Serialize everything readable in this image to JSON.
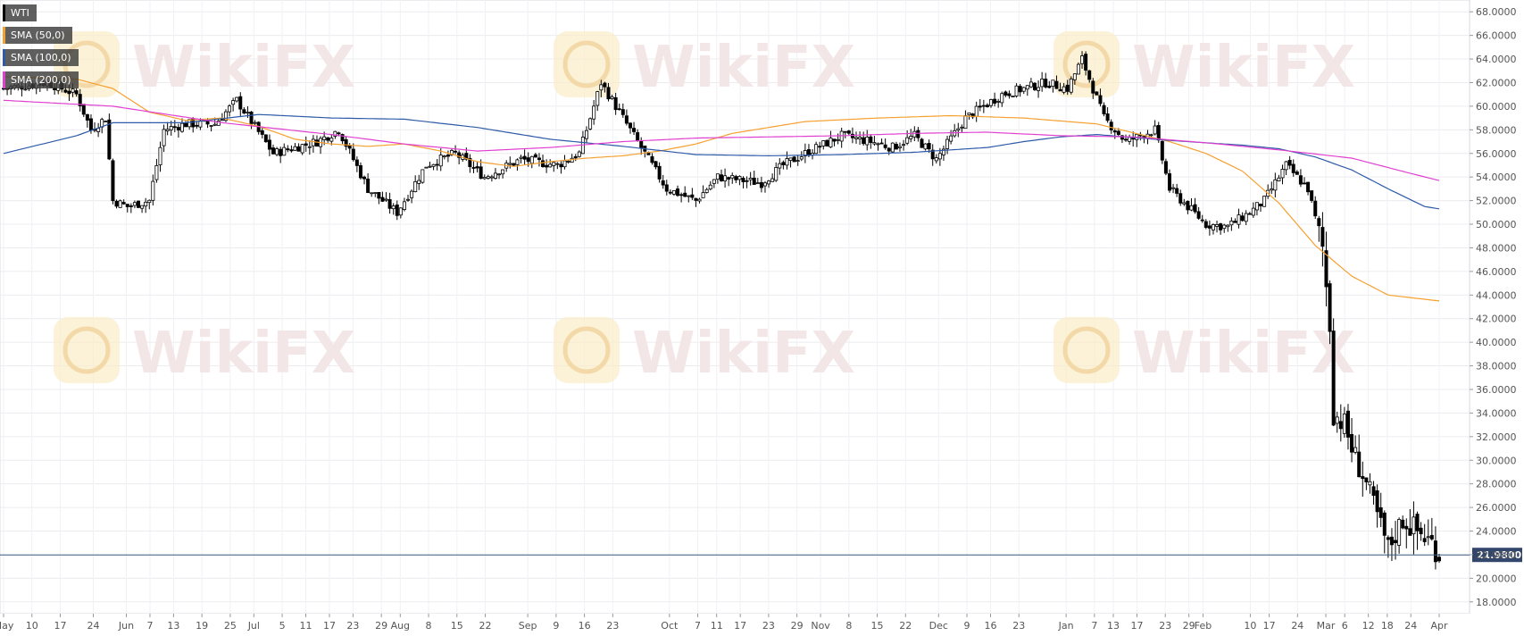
{
  "legend": [
    {
      "label": "WTI",
      "color": "#000000"
    },
    {
      "label": "SMA (50,0)",
      "color": "#f5a030"
    },
    {
      "label": "SMA (100,0)",
      "color": "#2e5aa8"
    },
    {
      "label": "SMA (200,0)",
      "color": "#e040d0"
    }
  ],
  "watermark": "WikiFX",
  "chart_data": {
    "type": "candlestick",
    "ylim": [
      17,
      69
    ],
    "y_ticks": [
      18,
      20,
      22,
      24,
      26,
      28,
      30,
      32,
      34,
      36,
      38,
      40,
      42,
      44,
      46,
      48,
      50,
      52,
      54,
      56,
      58,
      60,
      62,
      64,
      66,
      68
    ],
    "x_tick_labels": [
      "May",
      "10",
      "17",
      "24",
      "Jun",
      "7",
      "13",
      "19",
      "25",
      "Jul",
      "5",
      "11",
      "17",
      "23",
      "29",
      "Aug",
      "8",
      "15",
      "22",
      "Sep",
      "9",
      "16",
      "23",
      "Oct",
      "7",
      "11",
      "17",
      "23",
      "29",
      "Nov",
      "8",
      "15",
      "22",
      "Dec",
      "9",
      "16",
      "23",
      "Jan",
      "7",
      "13",
      "17",
      "23",
      "29",
      "Feb",
      "10",
      "17",
      "24",
      "Mar",
      "6",
      "12",
      "18",
      "24",
      "Apr"
    ],
    "last_price": 21.98,
    "last_price_label": "21.9800",
    "close_path": [
      [
        0,
        61.5
      ],
      [
        12,
        62
      ],
      [
        20,
        61
      ],
      [
        24,
        58
      ],
      [
        28,
        59
      ],
      [
        30,
        52
      ],
      [
        34,
        51.5
      ],
      [
        40,
        52
      ],
      [
        44,
        58
      ],
      [
        50,
        58.5
      ],
      [
        58,
        58.5
      ],
      [
        64,
        60.5
      ],
      [
        74,
        56
      ],
      [
        86,
        57
      ],
      [
        92,
        58
      ],
      [
        100,
        53
      ],
      [
        108,
        51
      ],
      [
        116,
        55
      ],
      [
        124,
        56
      ],
      [
        132,
        54
      ],
      [
        142,
        55.5
      ],
      [
        152,
        55
      ],
      [
        158,
        56
      ],
      [
        164,
        62
      ],
      [
        172,
        58
      ],
      [
        176,
        56
      ],
      [
        182,
        53
      ],
      [
        190,
        52
      ],
      [
        196,
        54
      ],
      [
        208,
        53.5
      ],
      [
        214,
        55
      ],
      [
        220,
        56
      ],
      [
        230,
        57.5
      ],
      [
        238,
        57
      ],
      [
        244,
        56.5
      ],
      [
        250,
        57.5
      ],
      [
        256,
        55.5
      ],
      [
        264,
        59
      ],
      [
        274,
        61
      ],
      [
        286,
        62
      ],
      [
        292,
        61.5
      ],
      [
        296,
        64
      ],
      [
        302,
        59
      ],
      [
        308,
        57
      ],
      [
        316,
        58
      ],
      [
        320,
        53
      ],
      [
        330,
        50
      ],
      [
        336,
        49.8
      ],
      [
        342,
        51
      ],
      [
        346,
        52
      ],
      [
        352,
        55
      ],
      [
        358,
        53
      ],
      [
        362,
        48
      ],
      [
        364,
        41.5
      ],
      [
        365,
        34
      ],
      [
        368,
        33
      ],
      [
        370,
        31
      ],
      [
        374,
        28
      ],
      [
        380,
        22.5
      ],
      [
        384,
        25
      ],
      [
        388,
        24
      ],
      [
        392,
        23
      ],
      [
        394,
        22
      ]
    ],
    "sma50": [
      [
        0,
        62.5
      ],
      [
        20,
        62.3
      ],
      [
        30,
        61.5
      ],
      [
        40,
        59.5
      ],
      [
        50,
        58.8
      ],
      [
        60,
        59
      ],
      [
        70,
        58.3
      ],
      [
        80,
        57.2
      ],
      [
        90,
        56.8
      ],
      [
        100,
        56.6
      ],
      [
        110,
        56.8
      ],
      [
        120,
        56.2
      ],
      [
        130,
        55.3
      ],
      [
        140,
        54.9
      ],
      [
        150,
        55.3
      ],
      [
        160,
        55.6
      ],
      [
        170,
        55.8
      ],
      [
        180,
        56.2
      ],
      [
        190,
        56.8
      ],
      [
        200,
        57.7
      ],
      [
        210,
        58.2
      ],
      [
        220,
        58.7
      ],
      [
        240,
        59
      ],
      [
        260,
        59.2
      ],
      [
        280,
        59
      ],
      [
        300,
        58.5
      ],
      [
        320,
        57
      ],
      [
        330,
        56
      ],
      [
        340,
        54.5
      ],
      [
        350,
        51.8
      ],
      [
        360,
        48.2
      ],
      [
        370,
        45.6
      ],
      [
        380,
        44
      ],
      [
        394,
        43.5
      ]
    ],
    "sma100": [
      [
        0,
        56
      ],
      [
        20,
        57.5
      ],
      [
        30,
        58.6
      ],
      [
        50,
        58.6
      ],
      [
        70,
        59.3
      ],
      [
        90,
        59
      ],
      [
        110,
        58.9
      ],
      [
        130,
        58.2
      ],
      [
        150,
        57.2
      ],
      [
        170,
        56.6
      ],
      [
        190,
        55.9
      ],
      [
        210,
        55.8
      ],
      [
        230,
        55.9
      ],
      [
        250,
        56.1
      ],
      [
        270,
        56.5
      ],
      [
        280,
        57
      ],
      [
        290,
        57.4
      ],
      [
        300,
        57.6
      ],
      [
        320,
        57.1
      ],
      [
        340,
        56.7
      ],
      [
        350,
        56.4
      ],
      [
        360,
        55.7
      ],
      [
        370,
        54.6
      ],
      [
        380,
        53
      ],
      [
        390,
        51.5
      ],
      [
        394,
        51.3
      ]
    ],
    "sma200": [
      [
        0,
        60.5
      ],
      [
        30,
        60
      ],
      [
        60,
        58.6
      ],
      [
        90,
        57.6
      ],
      [
        110,
        56.8
      ],
      [
        130,
        56.2
      ],
      [
        150,
        56.5
      ],
      [
        170,
        57
      ],
      [
        190,
        57.3
      ],
      [
        210,
        57.4
      ],
      [
        230,
        57.5
      ],
      [
        250,
        57.7
      ],
      [
        270,
        57.8
      ],
      [
        290,
        57.5
      ],
      [
        310,
        57.4
      ],
      [
        330,
        56.9
      ],
      [
        350,
        56.3
      ],
      [
        370,
        55.6
      ],
      [
        385,
        54.4
      ],
      [
        394,
        53.7
      ]
    ]
  }
}
